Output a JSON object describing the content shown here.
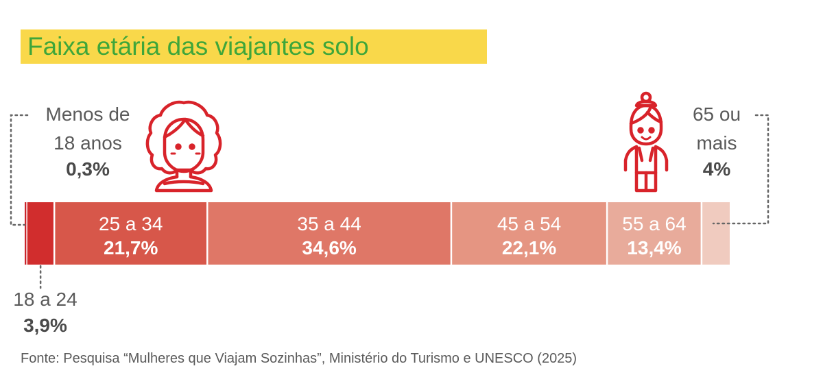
{
  "chart_data": {
    "type": "bar",
    "orientation": "horizontal-stacked",
    "title": "Faixa etária das viajantes solo",
    "unit": "%",
    "categories": [
      {
        "label": "Menos de 18 anos",
        "label_lines": [
          "Menos de",
          "18 anos"
        ],
        "value": 0.3,
        "value_label": "0,3%",
        "color": "#c9242a"
      },
      {
        "label": "18 a 24",
        "label_lines": [
          "18 a 24"
        ],
        "value": 3.9,
        "value_label": "3,9%",
        "color": "#d12d2d"
      },
      {
        "label": "25 a 34",
        "label_lines": [
          "25 a 34"
        ],
        "value": 21.7,
        "value_label": "21,7%",
        "color": "#d7574a"
      },
      {
        "label": "35 a 44",
        "label_lines": [
          "35 a 44"
        ],
        "value": 34.6,
        "value_label": "34,6%",
        "color": "#df7767"
      },
      {
        "label": "45 a 54",
        "label_lines": [
          "45 a 54"
        ],
        "value": 22.1,
        "value_label": "22,1%",
        "color": "#e59582"
      },
      {
        "label": "55 a 64",
        "label_lines": [
          "55 a 64"
        ],
        "value": 13.4,
        "value_label": "13,4%",
        "color": "#e8ab9b"
      },
      {
        "label": "65 ou mais",
        "label_lines": [
          "65 ou",
          "mais"
        ],
        "value": 4,
        "value_label": "4%",
        "color": "#f0cbbf"
      }
    ],
    "source": "Fonte: Pesquisa “Mulheres que Viajam Sozinhas”, Ministério do Turismo e UNESCO (2025)"
  },
  "icons": [
    "young-woman-curly-hair-icon",
    "elderly-woman-icon"
  ],
  "colors": {
    "title_text": "#3ea63a",
    "title_highlight": "#f9d84a",
    "icon_stroke": "#d8232a",
    "label_text": "#5a5a5a",
    "value_text": "#4a4a4a",
    "leader_line": "#666666"
  }
}
